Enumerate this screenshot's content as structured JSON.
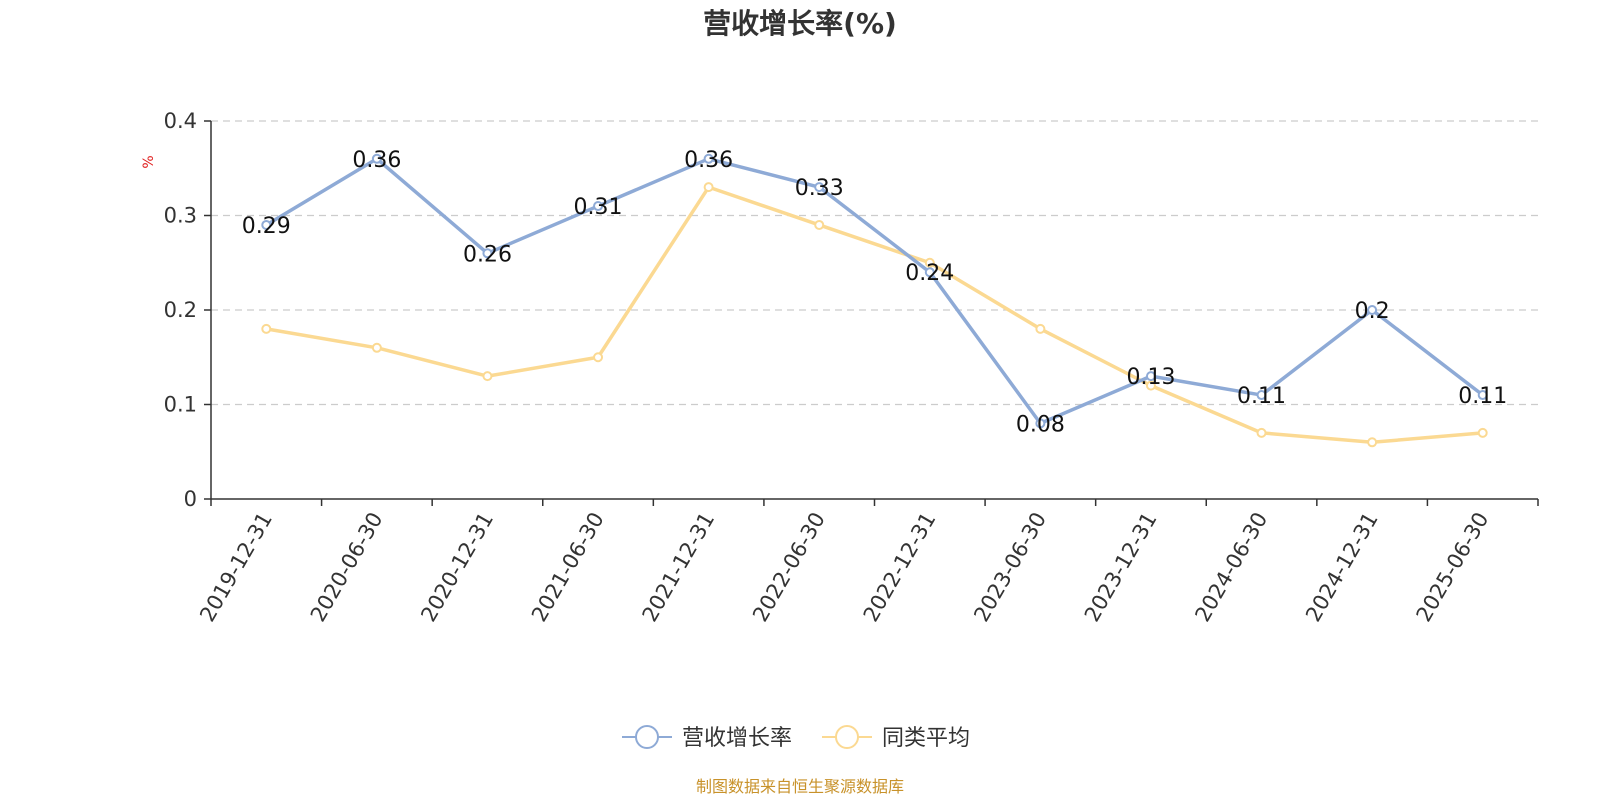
{
  "chart_data": {
    "type": "line",
    "title": "营收增长率(%)",
    "ylabel": "%",
    "xlabel": "",
    "ylim": [
      0,
      0.4
    ],
    "yticks": [
      0,
      0.1,
      0.2,
      0.3,
      0.4
    ],
    "ytick_labels": [
      "0",
      "0.1",
      "0.2",
      "0.3",
      "0.4"
    ],
    "grid": true,
    "legend_position": "bottom-center",
    "categories": [
      "2019-12-31",
      "2020-06-30",
      "2020-12-31",
      "2021-06-30",
      "2021-12-31",
      "2022-06-30",
      "2022-12-31",
      "2023-06-30",
      "2023-12-31",
      "2024-06-30",
      "2024-12-31",
      "2025-06-30"
    ],
    "series": [
      {
        "name": "营收增长率",
        "color": "#8eaad6",
        "values": [
          0.29,
          0.36,
          0.26,
          0.31,
          0.36,
          0.33,
          0.24,
          0.08,
          0.13,
          0.11,
          0.2,
          0.11
        ],
        "labels": [
          "0.29",
          "0.36",
          "0.26",
          "0.31",
          "0.36",
          "0.33",
          "0.24",
          "0.08",
          "0.13",
          "0.11",
          "0.2",
          "0.11"
        ]
      },
      {
        "name": "同类平均",
        "color": "#fbd992",
        "values": [
          0.18,
          0.16,
          0.13,
          0.15,
          0.33,
          0.29,
          0.25,
          0.18,
          0.12,
          0.07,
          0.06,
          0.07
        ]
      }
    ],
    "source": "制图数据来自恒生聚源数据库",
    "source_color": "#c8922a",
    "unit_color": "#e02020"
  }
}
